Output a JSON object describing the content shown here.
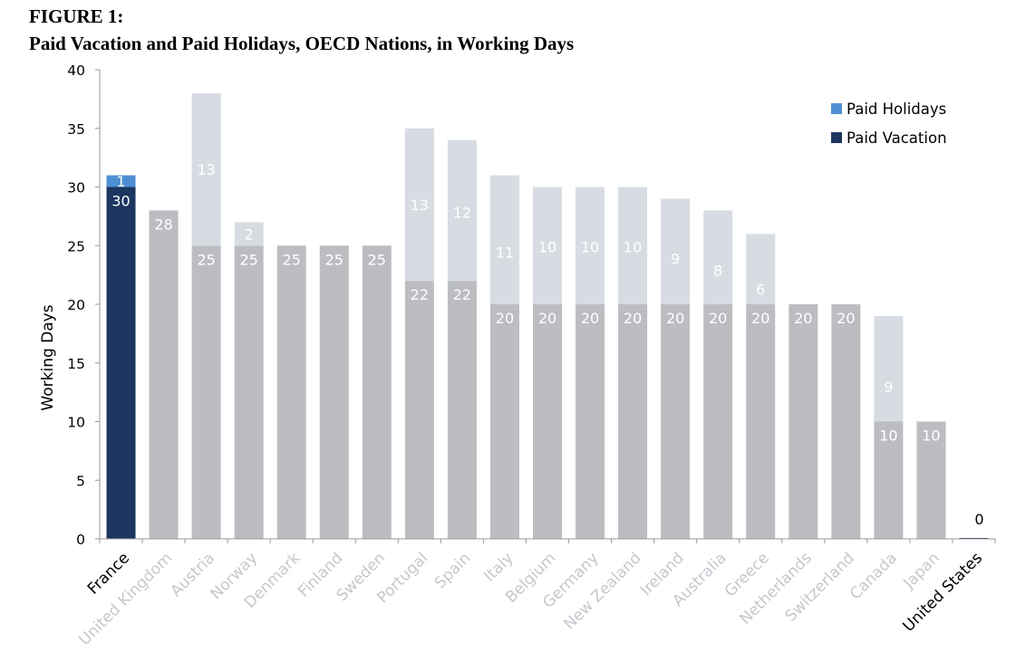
{
  "figure": {
    "label": "FIGURE 1:",
    "title": "Paid Vacation and Paid Holidays, OECD Nations, in Working Days"
  },
  "chart_data": {
    "type": "bar",
    "stacked": true,
    "ylabel": "Working Days",
    "xlabel": "",
    "ylim": [
      0,
      40
    ],
    "yticks": [
      0,
      5,
      10,
      15,
      20,
      25,
      30,
      35,
      40
    ],
    "grid": false,
    "legend_position": "top-right",
    "highlighted_categories": [
      "France",
      "United States"
    ],
    "categories": [
      "France",
      "United Kingdom",
      "Austria",
      "Norway",
      "Denmark",
      "Finland",
      "Sweden",
      "Portugal",
      "Spain",
      "Italy",
      "Belgium",
      "Germany",
      "New Zealand",
      "Ireland",
      "Australia",
      "Greece",
      "Netherlands",
      "Switzerland",
      "Canada",
      "Japan",
      "United States"
    ],
    "series": [
      {
        "name": "Paid Vacation",
        "values": [
          30,
          28,
          25,
          25,
          25,
          25,
          25,
          22,
          22,
          20,
          20,
          20,
          20,
          20,
          20,
          20,
          20,
          20,
          10,
          10,
          0
        ],
        "color": "#1c3660",
        "muted_color": "#bbbdc1"
      },
      {
        "name": "Paid Holidays",
        "values": [
          1,
          0,
          13,
          2,
          0,
          0,
          0,
          13,
          12,
          11,
          10,
          10,
          10,
          9,
          8,
          6,
          0,
          0,
          9,
          0,
          0
        ],
        "color": "#4f8fd1",
        "muted_color": "#d7dce3"
      }
    ],
    "colors": {
      "axis": "#999999",
      "muted_category_label": "#c4c7cc",
      "highlight_category_label": "#000000",
      "bar_label": "#ffffff",
      "zero_label": "#000000"
    }
  }
}
